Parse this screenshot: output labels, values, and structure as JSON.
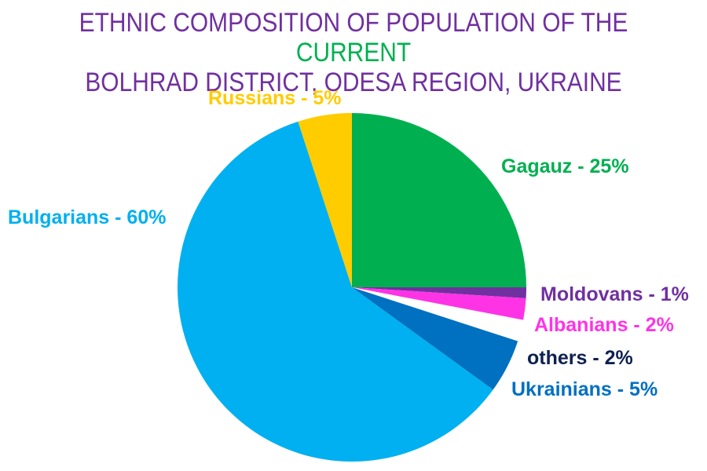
{
  "title": {
    "line1_before": "ETHNIC COMPOSITION OF POPULATION OF THE ",
    "line1_highlight": "CURRENT",
    "line2": "BOLHRAD DISTRICT, ODESA REGION, UKRAINE"
  },
  "colors": {
    "title": "#7030A0",
    "highlight": "#00B050"
  },
  "chart_data": {
    "type": "pie",
    "title": "ETHNIC COMPOSITION OF POPULATION OF THE CURRENT BOLHRAD DISTRICT, ODESA REGION, UKRAINE",
    "start_angle_deg_clockwise_from_top": 0,
    "slices": [
      {
        "name": "Gagauz",
        "value": 25,
        "label": "Gagauz - 25%",
        "color": "#00B050"
      },
      {
        "name": "Moldovans",
        "value": 1,
        "label": "Moldovans - 1%",
        "color": "#7030A0"
      },
      {
        "name": "Albanians",
        "value": 2,
        "label": "Albanians - 2%",
        "color": "#FF33E6"
      },
      {
        "name": "others",
        "value": 2,
        "label": "others - 2%",
        "color": "#FFFFFF",
        "label_color": "#0D2050"
      },
      {
        "name": "Ukrainians",
        "value": 5,
        "label": "Ukrainians - 5%",
        "color": "#0070C0"
      },
      {
        "name": "Bulgarians",
        "value": 60,
        "label": "Bulgarians - 60%",
        "color": "#00B0F0"
      },
      {
        "name": "Russians",
        "value": 5,
        "label": "Russians - 5%",
        "color": "#FFCC00"
      }
    ]
  }
}
